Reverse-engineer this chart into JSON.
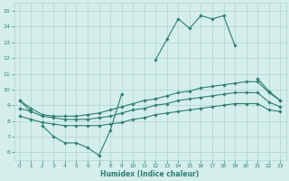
{
  "x_values": [
    0,
    1,
    2,
    3,
    4,
    5,
    6,
    7,
    8,
    9,
    10,
    11,
    12,
    13,
    14,
    15,
    16,
    17,
    18,
    19,
    20,
    21,
    22,
    23
  ],
  "line1_y": [
    9.3,
    8.6,
    null,
    null,
    null,
    null,
    null,
    null,
    null,
    null,
    null,
    null,
    11.9,
    13.2,
    14.5,
    13.9,
    14.7,
    14.5,
    14.7,
    12.8,
    null,
    10.7,
    9.9,
    9.3
  ],
  "line2_y": [
    null,
    null,
    7.7,
    7.0,
    6.6,
    6.6,
    6.3,
    5.8,
    7.4,
    9.7,
    null,
    null,
    null,
    null,
    null,
    null,
    null,
    null,
    null,
    null,
    null,
    null,
    null,
    null
  ],
  "line3_y": [
    9.3,
    8.8,
    8.4,
    8.3,
    8.3,
    8.3,
    8.4,
    8.5,
    8.7,
    8.9,
    9.1,
    9.3,
    9.4,
    9.6,
    9.8,
    9.9,
    10.1,
    10.2,
    10.3,
    10.4,
    10.5,
    10.5,
    9.8,
    9.3
  ],
  "line4_y": [
    8.8,
    8.6,
    8.3,
    8.2,
    8.1,
    8.1,
    8.1,
    8.2,
    8.3,
    8.5,
    8.7,
    8.8,
    9.0,
    9.1,
    9.3,
    9.4,
    9.5,
    9.6,
    9.7,
    9.8,
    9.8,
    9.8,
    9.2,
    8.9
  ],
  "line5_y": [
    8.3,
    8.1,
    7.9,
    7.8,
    7.7,
    7.7,
    7.7,
    7.7,
    7.8,
    7.9,
    8.1,
    8.2,
    8.4,
    8.5,
    8.6,
    8.7,
    8.8,
    8.9,
    9.0,
    9.1,
    9.1,
    9.1,
    8.7,
    8.6
  ],
  "line_color": "#2e7d72",
  "background_color": "#d4eeec",
  "grid_color": "#aed4d0",
  "xlabel": "Humidex (Indice chaleur)",
  "ylim": [
    5.5,
    15.5
  ],
  "xlim": [
    -0.5,
    23.5
  ],
  "yticks": [
    6,
    7,
    8,
    9,
    10,
    11,
    12,
    13,
    14,
    15
  ],
  "xticks": [
    0,
    1,
    2,
    3,
    4,
    5,
    6,
    7,
    8,
    9,
    10,
    11,
    12,
    13,
    14,
    15,
    16,
    17,
    18,
    19,
    20,
    21,
    22,
    23
  ]
}
